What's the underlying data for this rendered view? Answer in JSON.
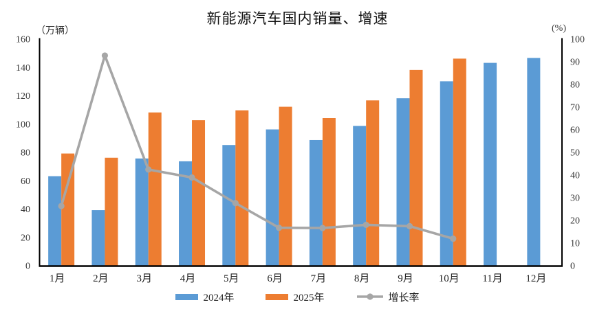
{
  "chart_data": {
    "type": "combo-bar-line",
    "title": "新能源汽车国内销量、增速",
    "categories": [
      "1月",
      "2月",
      "3月",
      "4月",
      "5月",
      "6月",
      "7月",
      "8月",
      "9月",
      "10月",
      "11月",
      "12月"
    ],
    "left_axis": {
      "unit": "（万辆）",
      "min": 0,
      "max": 160,
      "step": 20,
      "ticks": [
        "0",
        "20",
        "40",
        "60",
        "80",
        "100",
        "120",
        "140",
        "160"
      ]
    },
    "right_axis": {
      "unit": "(%)",
      "min": 0,
      "max": 100,
      "step": 10,
      "ticks": [
        "0",
        "10",
        "20",
        "30",
        "40",
        "50",
        "60",
        "70",
        "80",
        "90",
        "100"
      ]
    },
    "series": [
      {
        "name": "2024年",
        "type": "bar",
        "axis": "left",
        "color": "#5B9BD5",
        "values": [
          63,
          39,
          75.5,
          73.5,
          85,
          96,
          88.5,
          98.5,
          118,
          130,
          143,
          146.5
        ]
      },
      {
        "name": "2025年",
        "type": "bar",
        "axis": "left",
        "color": "#ED7D31",
        "values": [
          79,
          76,
          108,
          102.5,
          109.5,
          112,
          104,
          116.5,
          138,
          146,
          null,
          null
        ]
      },
      {
        "name": "增长率",
        "type": "line",
        "axis": "right",
        "color": "#A6A6A6",
        "values": [
          26.2,
          92.6,
          42.3,
          38.8,
          27.5,
          16.6,
          16.5,
          17.9,
          17.3,
          11.8,
          null,
          null
        ]
      }
    ],
    "legend_position": "bottom",
    "grid": false,
    "axis_color": "#000000"
  }
}
